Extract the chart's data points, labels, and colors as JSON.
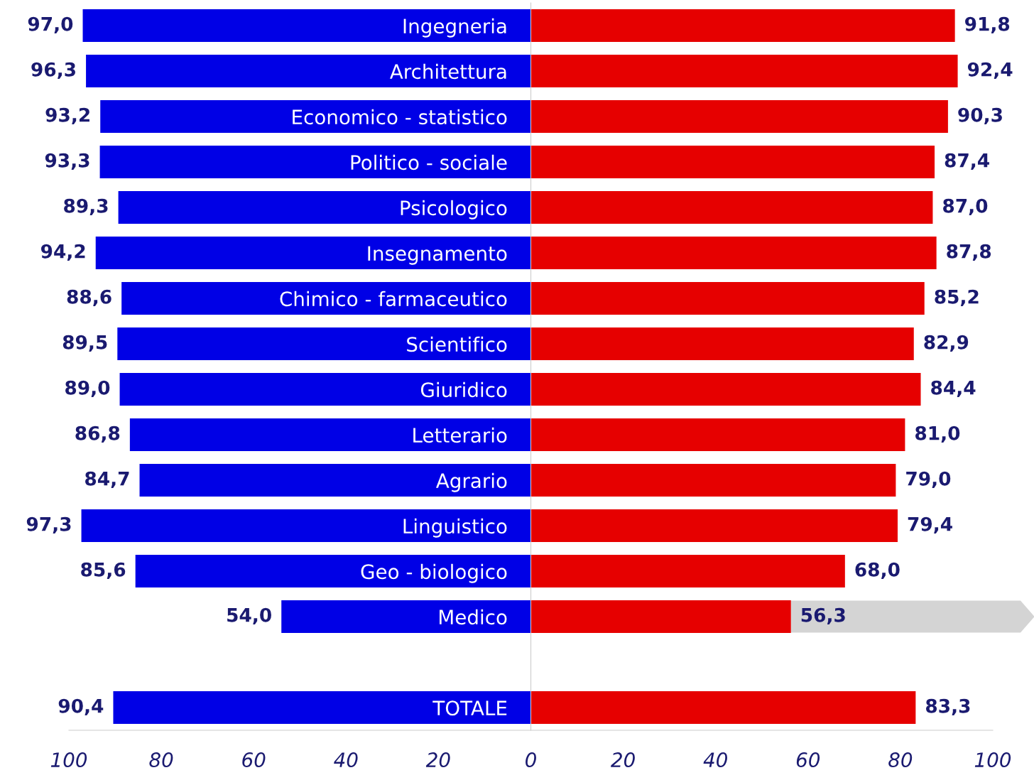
{
  "chart_data": {
    "type": "bar",
    "orientation": "horizontal",
    "categories": [
      "Ingegneria",
      "Architettura",
      "Economico - statistico",
      "Politico - sociale",
      "Psicologico",
      "Insegnamento",
      "Chimico - farmaceutico",
      "Scientifico",
      "Giuridico",
      "Letterario",
      "Agrario",
      "Linguistico",
      "Geo - biologico",
      "Medico",
      null,
      "TOTALE"
    ],
    "series": [
      {
        "color": "#0000e6",
        "values": [
          97.0,
          96.3,
          93.2,
          93.3,
          89.3,
          94.2,
          88.6,
          89.5,
          89.0,
          86.8,
          84.7,
          97.3,
          85.6,
          54.0,
          null,
          90.4
        ],
        "base": [
          -97.0,
          -96.3,
          -93.2,
          -93.3,
          -89.3,
          -94.2,
          -88.6,
          -89.5,
          -89.0,
          -86.8,
          -84.7,
          -97.3,
          -85.6,
          -54.0,
          null,
          -90.4
        ],
        "value_labels": [
          "97,0",
          "96,3",
          "93,2",
          "93,3",
          "89,3",
          "94,2",
          "88,6",
          "89,5",
          "89,0",
          "86,8",
          "84,7",
          "97,3",
          "85,6",
          "54,0",
          null,
          "90,4"
        ]
      },
      {
        "color": "#e60000",
        "values": [
          91.8,
          92.4,
          90.3,
          87.4,
          87.0,
          87.8,
          85.2,
          82.9,
          84.4,
          81.0,
          79.0,
          79.4,
          68.0,
          56.3,
          null,
          83.3
        ],
        "value_labels": [
          "91,8",
          "92,4",
          "90,3",
          "87,4",
          "87,0",
          "87,8",
          "85,2",
          "82,9",
          "84,4",
          "81,0",
          "79,0",
          "79,4",
          "68,0",
          "56,3",
          null,
          "83,3"
        ]
      }
    ],
    "xlim": [
      -100,
      100
    ],
    "xticks": [
      {
        "value": -100,
        "label": "100"
      },
      {
        "value": -80,
        "label": "80"
      },
      {
        "value": -60,
        "label": "60"
      },
      {
        "value": -40,
        "label": "40"
      },
      {
        "value": -20,
        "label": "20"
      },
      0,
      20,
      40,
      60,
      80,
      100
    ],
    "grid": false,
    "legend": false
  }
}
